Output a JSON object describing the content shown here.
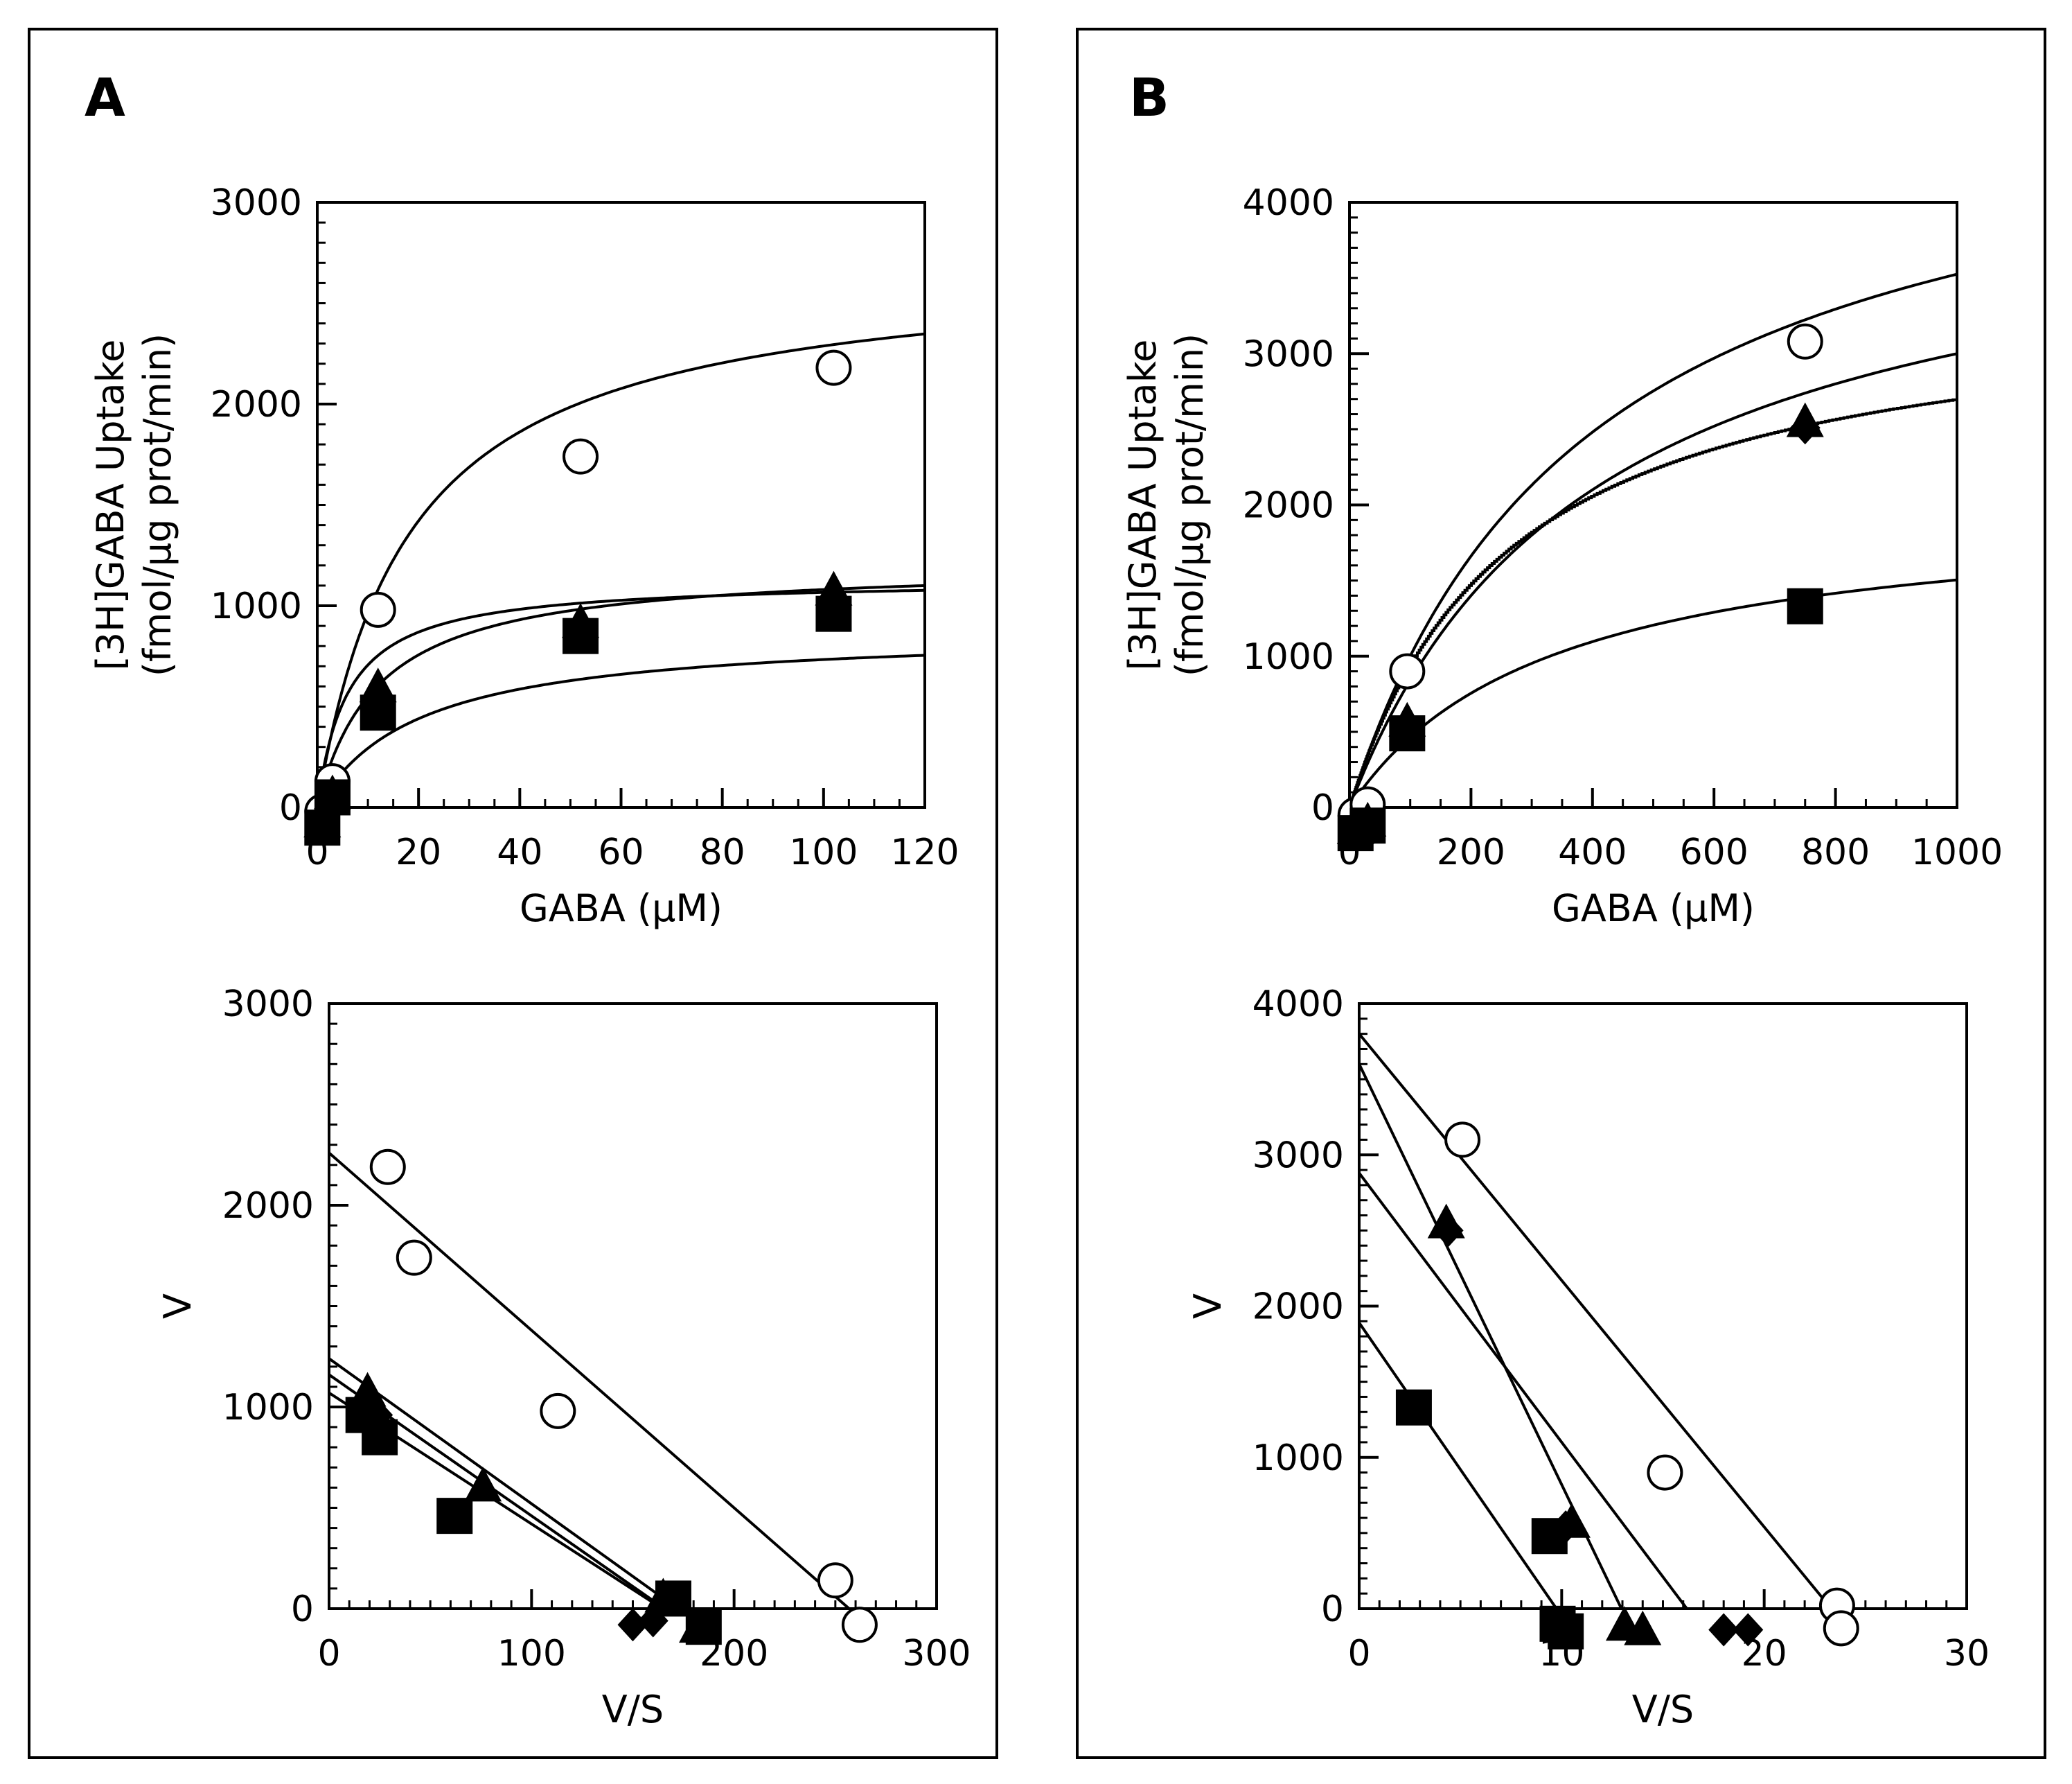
{
  "panels": {
    "a": {
      "letter": "A"
    },
    "b": {
      "letter": "B"
    }
  },
  "chart_data": [
    {
      "id": "A-top",
      "type": "scatter",
      "title": "",
      "xlabel": "GABA (μM)",
      "ylabel": "[3H]GABA Uptake",
      "ylabel2": "(fmol/μg prot/min)",
      "xlim": [
        0,
        120
      ],
      "ylim": [
        0,
        3000
      ],
      "xticks": [
        0,
        20,
        40,
        60,
        80,
        100,
        120
      ],
      "yticks": [
        0,
        1000,
        2000,
        3000
      ],
      "xminor": 5,
      "yminor": 100,
      "series": [
        {
          "name": "open circle",
          "marker": "circle-open",
          "x": [
            1,
            3,
            12,
            52,
            102
          ],
          "y": [
            -20,
            130,
            980,
            1740,
            2180
          ]
        },
        {
          "name": "triangle",
          "marker": "triangle",
          "x": [
            1,
            3,
            12,
            52,
            102
          ],
          "y": [
            -80,
            60,
            590,
            910,
            1070
          ]
        },
        {
          "name": "diamond",
          "marker": "diamond",
          "x": [
            1,
            3,
            12,
            52,
            102
          ],
          "y": [
            -100,
            20,
            520,
            860,
            960
          ]
        },
        {
          "name": "square",
          "marker": "square",
          "x": [
            1,
            3,
            12,
            52,
            102
          ],
          "y": [
            -100,
            50,
            470,
            850,
            960
          ]
        }
      ],
      "curves": [
        {
          "name": "fit 1",
          "vmax": 2700,
          "km": 18
        },
        {
          "name": "fit 2",
          "vmax": 1130,
          "km": 6
        },
        {
          "name": "fit 3",
          "vmax": 1210,
          "km": 12
        },
        {
          "name": "fit 4",
          "vmax": 880,
          "km": 20
        }
      ]
    },
    {
      "id": "B-top",
      "type": "scatter",
      "title": "",
      "xlabel": "GABA (μM)",
      "ylabel": "[3H]GABA Uptake",
      "ylabel2": "(fmol/μg prot/min)",
      "xlim": [
        0,
        1000
      ],
      "ylim": [
        0,
        4000
      ],
      "xticks": [
        0,
        200,
        400,
        600,
        800,
        1000
      ],
      "yticks": [
        0,
        1000,
        2000,
        3000,
        4000
      ],
      "xminor": 50,
      "yminor": 100,
      "series": [
        {
          "name": "open circle",
          "marker": "circle-open",
          "x": [
            10,
            30,
            95,
            750
          ],
          "y": [
            -50,
            20,
            900,
            3080
          ]
        },
        {
          "name": "triangle",
          "marker": "triangle",
          "x": [
            10,
            30,
            95,
            750
          ],
          "y": [
            -150,
            -100,
            560,
            2540
          ]
        },
        {
          "name": "diamond",
          "marker": "diamond",
          "x": [
            10,
            30,
            95,
            750
          ],
          "y": [
            -170,
            -140,
            530,
            2510
          ]
        },
        {
          "name": "square",
          "marker": "square",
          "x": [
            10,
            30,
            95,
            750
          ],
          "y": [
            -170,
            -120,
            490,
            1330
          ]
        }
      ],
      "curves": [
        {
          "name": "fit 1",
          "vmax": 4900,
          "km": 390
        },
        {
          "name": "fit 2",
          "vmax": 4200,
          "km": 400
        },
        {
          "name": "fit 3",
          "vmax": 3400,
          "km": 260,
          "stepped": true
        },
        {
          "name": "fit 4",
          "vmax": 2000,
          "km": 330
        }
      ]
    },
    {
      "id": "A-bottom",
      "type": "scatter",
      "title": "",
      "xlabel": "V/S",
      "ylabel": "V",
      "xlim": [
        0,
        300
      ],
      "ylim": [
        0,
        3000
      ],
      "xticks": [
        0,
        100,
        200,
        300
      ],
      "yticks": [
        0,
        1000,
        2000,
        3000
      ],
      "xminor": 10,
      "yminor": 100,
      "series": [
        {
          "name": "open circle",
          "marker": "circle-open",
          "x": [
            29,
            42,
            113,
            250,
            262
          ],
          "y": [
            2190,
            1740,
            980,
            140,
            -80
          ]
        },
        {
          "name": "triangle",
          "marker": "triangle",
          "x": [
            19,
            76,
            165,
            182
          ],
          "y": [
            1070,
            600,
            50,
            -100
          ]
        },
        {
          "name": "diamond",
          "marker": "diamond",
          "x": [
            24,
            150,
            160
          ],
          "y": [
            960,
            -80,
            -60
          ]
        },
        {
          "name": "square",
          "marker": "square",
          "x": [
            17,
            25,
            62,
            170,
            185
          ],
          "y": [
            960,
            850,
            460,
            50,
            -90
          ]
        }
      ],
      "lines": [
        {
          "name": "fit 1",
          "intercept": 2260,
          "slope": -8.8
        },
        {
          "name": "fit 2",
          "intercept": 1240,
          "slope": -7.2
        },
        {
          "name": "fit 3",
          "intercept": 1160,
          "slope": -7.0
        },
        {
          "name": "fit 4",
          "intercept": 1070,
          "slope": -6.5
        }
      ]
    },
    {
      "id": "B-bottom",
      "type": "scatter",
      "title": "",
      "xlabel": "V/S",
      "ylabel": "V",
      "xlim": [
        0,
        30
      ],
      "ylim": [
        0,
        4000
      ],
      "xticks": [
        0,
        10,
        20,
        30
      ],
      "yticks": [
        0,
        1000,
        2000,
        3000,
        4000
      ],
      "xminor": 1,
      "yminor": 100,
      "series": [
        {
          "name": "open circle",
          "marker": "circle-open",
          "x": [
            5.1,
            15.1,
            23.6,
            23.8
          ],
          "y": [
            3100,
            900,
            20,
            -130
          ]
        },
        {
          "name": "triangle",
          "marker": "triangle",
          "x": [
            4.3,
            10.5,
            13.1,
            14.0
          ],
          "y": [
            2540,
            560,
            -120,
            -150
          ]
        },
        {
          "name": "diamond",
          "marker": "diamond",
          "x": [
            4.4,
            10.2,
            18.0,
            19.2
          ],
          "y": [
            2500,
            540,
            -140,
            -140
          ]
        },
        {
          "name": "square",
          "marker": "square",
          "x": [
            2.7,
            9.4,
            9.8,
            10.2
          ],
          "y": [
            1330,
            480,
            -100,
            -150
          ]
        }
      ],
      "lines": [
        {
          "name": "fit 1",
          "intercept": 3800,
          "slope": -163
        },
        {
          "name": "fit 2",
          "intercept": 3600,
          "slope": -278
        },
        {
          "name": "fit 3",
          "intercept": 2880,
          "slope": -178
        },
        {
          "name": "fit 4",
          "intercept": 1890,
          "slope": -194
        }
      ]
    }
  ]
}
